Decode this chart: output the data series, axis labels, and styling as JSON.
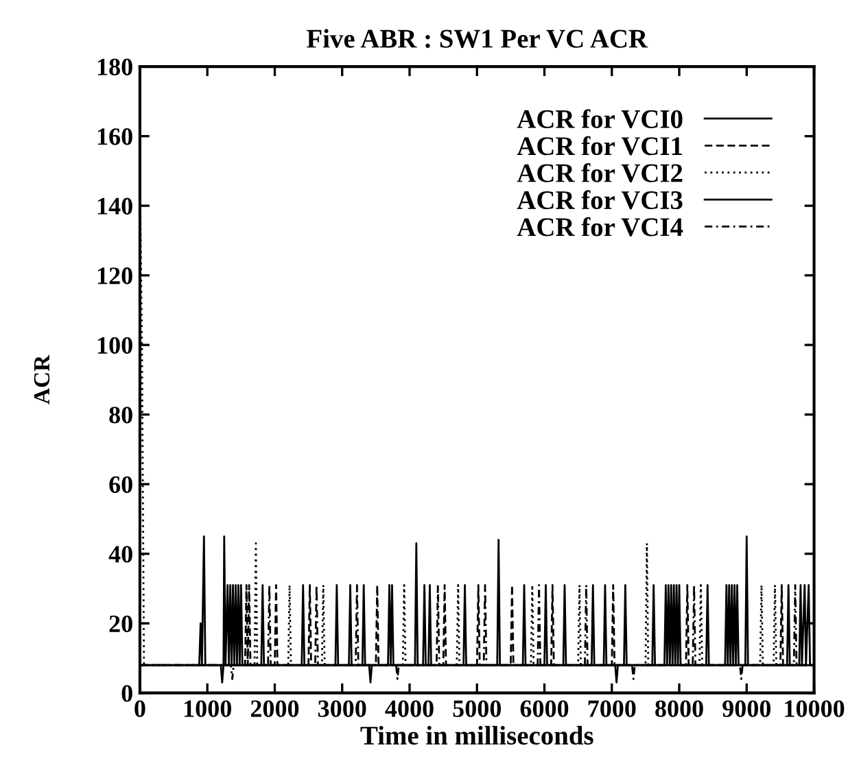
{
  "chart_data": {
    "type": "line",
    "title": "Five ABR : SW1 Per VC ACR",
    "xlabel": "Time in milliseconds",
    "ylabel": "ACR",
    "xlim": [
      0,
      10000
    ],
    "ylim": [
      0,
      180
    ],
    "xticks": [
      0,
      1000,
      2000,
      3000,
      4000,
      5000,
      6000,
      7000,
      8000,
      9000,
      10000
    ],
    "yticks": [
      0,
      20,
      40,
      60,
      80,
      100,
      120,
      140,
      160,
      180
    ],
    "legend": "top right",
    "grid": false,
    "marker": "none",
    "series": [
      {
        "name": "ACR for VCI0",
        "color": "#000000",
        "line_style": "solid",
        "x": [
          0,
          880,
          900,
          920,
          950,
          970,
          1240,
          1250,
          1270,
          1300,
          1320,
          1340,
          1360,
          1380,
          1400,
          1420,
          1440,
          1460,
          1480,
          1500,
          1520,
          2900,
          2920,
          2940,
          3300,
          3320,
          3340,
          3680,
          3700,
          3720,
          3740,
          3760,
          4080,
          4100,
          4120,
          4280,
          4300,
          4320,
          5680,
          5700,
          5720,
          6280,
          6300,
          6320,
          6880,
          6900,
          6920,
          7180,
          7200,
          7220,
          7780,
          7800,
          7820,
          7840,
          7860,
          7880,
          7900,
          7920,
          7940,
          7960,
          7980,
          8000,
          8020,
          8680,
          8700,
          8720,
          8740,
          8760,
          8780,
          8800,
          8820,
          8840,
          8860,
          8880,
          8980,
          9000,
          9020,
          9780,
          9800,
          9820,
          9860,
          9880,
          9920,
          9940,
          10000
        ],
        "values": [
          8,
          8,
          20,
          8,
          45,
          8,
          8,
          45,
          8,
          31,
          8,
          31,
          8,
          31,
          8,
          31,
          8,
          31,
          8,
          31,
          8,
          8,
          31,
          8,
          8,
          31,
          8,
          8,
          31,
          8,
          31,
          8,
          8,
          43,
          8,
          8,
          31,
          8,
          8,
          31,
          8,
          8,
          31,
          8,
          8,
          31,
          8,
          8,
          31,
          8,
          8,
          31,
          8,
          31,
          8,
          31,
          8,
          31,
          8,
          31,
          8,
          31,
          8,
          8,
          31,
          8,
          31,
          8,
          31,
          8,
          31,
          8,
          31,
          8,
          8,
          45,
          8,
          8,
          31,
          8,
          31,
          8,
          31,
          8,
          8
        ]
      },
      {
        "name": "ACR for VCI1",
        "color": "#000000",
        "line_style": "dashed",
        "x": [
          0,
          1560,
          1580,
          1600,
          1620,
          1640,
          2000,
          2020,
          2040,
          2500,
          2520,
          2540,
          3500,
          3520,
          3540,
          4500,
          4520,
          4540,
          5000,
          5020,
          5040,
          5500,
          5520,
          5540,
          6100,
          6120,
          6140,
          7000,
          7020,
          7040,
          8100,
          8120,
          8140,
          9500,
          9520,
          9540,
          10000
        ],
        "values": [
          8,
          8,
          31,
          8,
          31,
          8,
          8,
          31,
          8,
          8,
          31,
          8,
          8,
          31,
          8,
          8,
          31,
          8,
          8,
          31,
          8,
          8,
          31,
          8,
          8,
          31,
          8,
          8,
          31,
          8,
          8,
          31,
          8,
          8,
          31,
          8,
          8
        ]
      },
      {
        "name": "ACR for VCI2",
        "color": "#000000",
        "line_style": "dotted",
        "x": [
          0,
          30,
          60,
          1700,
          1720,
          1740,
          2200,
          2220,
          2240,
          2700,
          2720,
          2740,
          3900,
          3920,
          3940,
          4700,
          4720,
          4740,
          5800,
          5820,
          5840,
          6500,
          6520,
          6540,
          7500,
          7520,
          7540,
          8300,
          8320,
          8340,
          9200,
          9220,
          9240,
          9400,
          9420,
          9440,
          10000
        ],
        "values": [
          150,
          100,
          8,
          8,
          43,
          8,
          8,
          31,
          8,
          8,
          31,
          8,
          8,
          31,
          8,
          8,
          31,
          8,
          8,
          31,
          8,
          8,
          31,
          8,
          8,
          43,
          8,
          8,
          31,
          8,
          8,
          31,
          8,
          8,
          31,
          8,
          8
        ]
      },
      {
        "name": "ACR for VCI3",
        "color": "#000000",
        "line_style": "solid",
        "x": [
          0,
          1200,
          1220,
          1240,
          1800,
          1820,
          1840,
          2400,
          2420,
          2440,
          3100,
          3120,
          3140,
          3400,
          3420,
          3440,
          4200,
          4220,
          4240,
          4800,
          4820,
          4840,
          5300,
          5320,
          5340,
          6000,
          6020,
          6040,
          6700,
          6720,
          6740,
          7050,
          7070,
          7090,
          7600,
          7620,
          7640,
          8400,
          8420,
          8440,
          9600,
          9620,
          9640,
          10000
        ],
        "values": [
          8,
          8,
          3,
          8,
          8,
          31,
          8,
          8,
          31,
          8,
          8,
          31,
          8,
          8,
          3,
          8,
          8,
          31,
          8,
          8,
          31,
          8,
          8,
          44,
          8,
          8,
          31,
          8,
          8,
          31,
          8,
          8,
          3,
          8,
          8,
          31,
          8,
          8,
          31,
          8,
          8,
          31,
          8,
          8
        ]
      },
      {
        "name": "ACR for VCI4",
        "color": "#000000",
        "line_style": "dashdot",
        "x": [
          0,
          1350,
          1370,
          1390,
          1900,
          1920,
          1940,
          2600,
          2620,
          2640,
          3200,
          3220,
          3240,
          3800,
          3820,
          3840,
          4400,
          4420,
          4440,
          5100,
          5120,
          5140,
          5900,
          5920,
          5940,
          6600,
          6620,
          6640,
          7300,
          7320,
          7340,
          8200,
          8220,
          8240,
          8900,
          8920,
          8940,
          9700,
          9720,
          9740,
          10000
        ],
        "values": [
          8,
          8,
          4,
          8,
          8,
          31,
          8,
          8,
          31,
          8,
          8,
          31,
          8,
          8,
          4,
          8,
          8,
          31,
          8,
          8,
          31,
          8,
          8,
          31,
          8,
          8,
          31,
          8,
          8,
          4,
          8,
          8,
          31,
          8,
          8,
          4,
          8,
          8,
          31,
          8,
          8
        ]
      }
    ]
  }
}
